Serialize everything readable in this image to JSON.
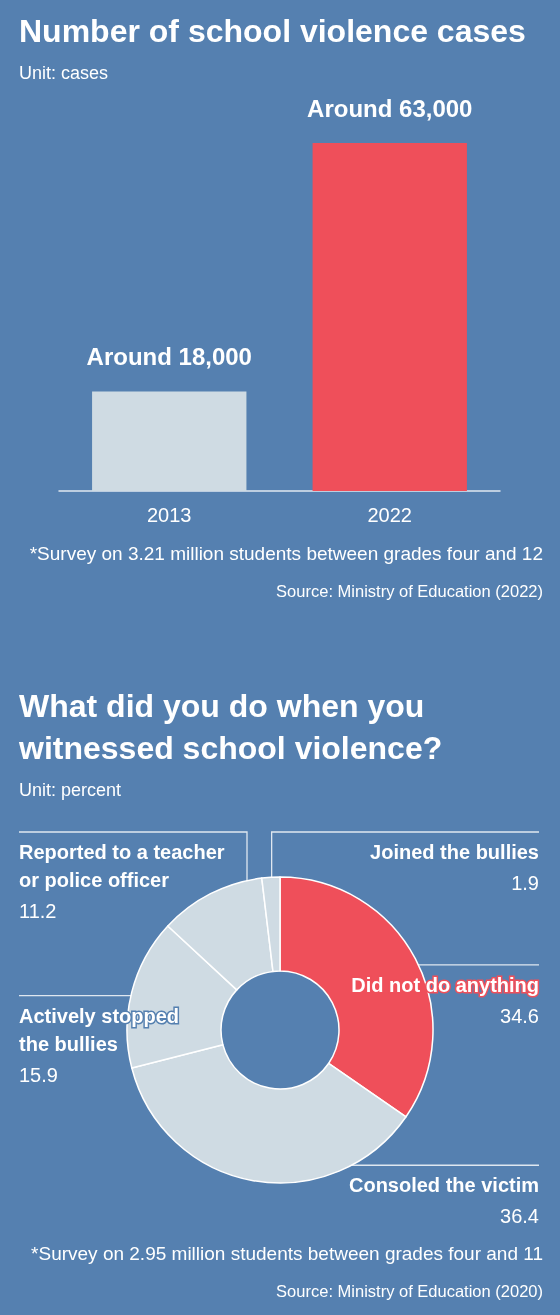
{
  "chart_data": [
    {
      "type": "bar",
      "title": "Number of school violence cases",
      "subtitle": "Unit: cases",
      "categories": [
        "2013",
        "2022"
      ],
      "values": [
        18000,
        63000
      ],
      "value_labels": [
        "Around 18,000",
        "Around 63,000"
      ],
      "colors": [
        "#cfdbe3",
        "#ef4f5a"
      ],
      "annotations": [
        "*Survey on 3.21 million students between grades four and 12",
        "Source: Ministry of Education (2022)"
      ]
    },
    {
      "type": "donut",
      "title": "What did you do when you witnessed school violence?",
      "subtitle": "Unit: percent",
      "categories": [
        "Did not do anything",
        "Consoled the victim",
        "Actively stopped the bullies",
        "Reported to a teacher or police officer",
        "Joined the bullies"
      ],
      "values": [
        34.6,
        36.4,
        15.9,
        11.2,
        1.9
      ],
      "colors": [
        "#ef4f5a",
        "#cfdbe3",
        "#cfdbe3",
        "#cfdbe3",
        "#cfdbe3"
      ],
      "data_labels": true,
      "annotations": [
        "*Survey on 2.95 million students between grades four and 11",
        "Source: Ministry of Education (2020)"
      ]
    }
  ]
}
